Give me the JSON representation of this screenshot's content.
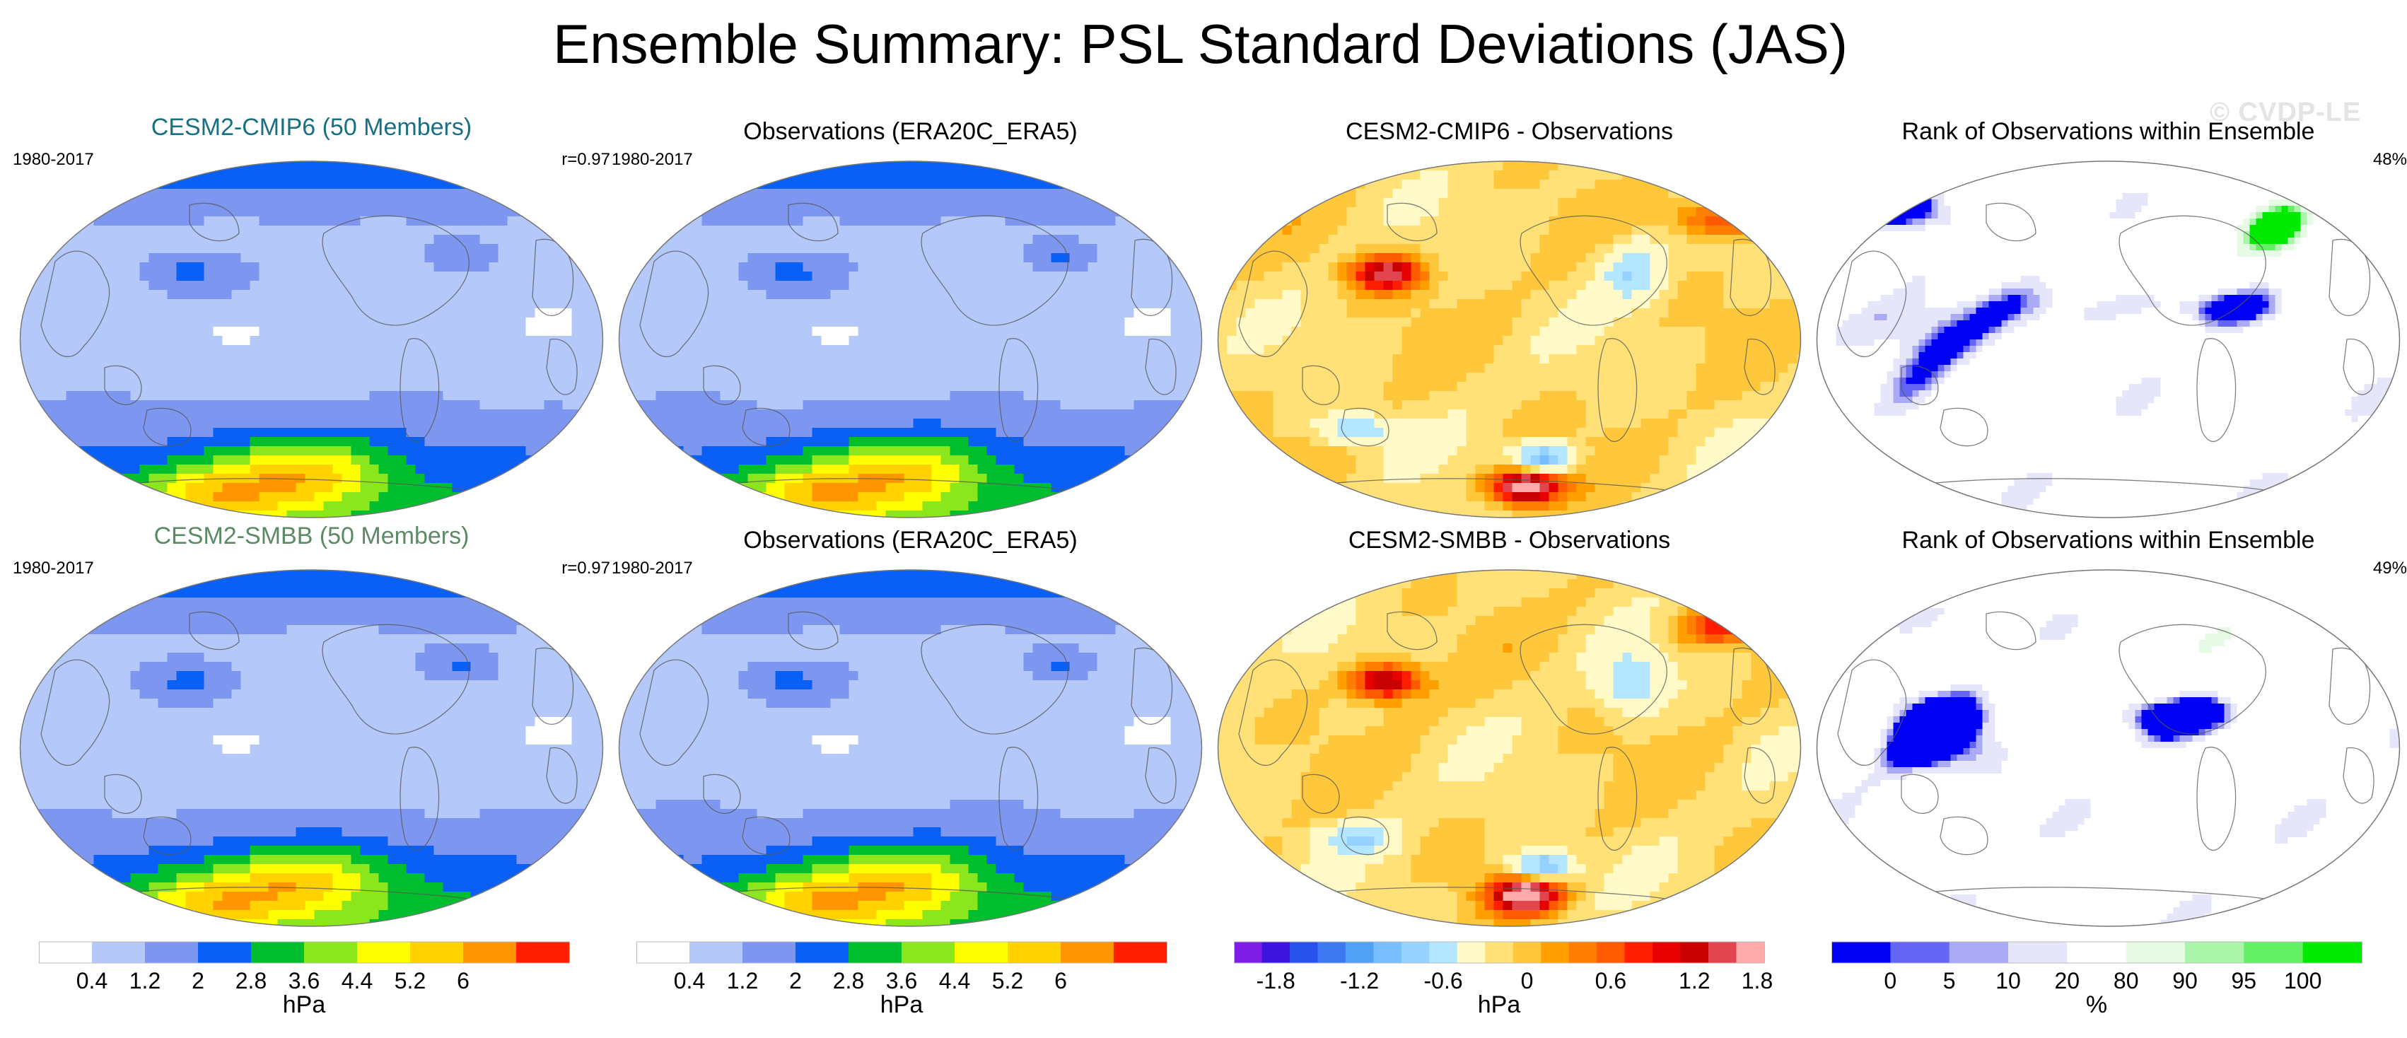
{
  "title": "Ensemble Summary: PSL Standard Deviations (JAS)",
  "watermark": "© CVDP-LE",
  "panels": [
    {
      "title": "CESM2-CMIP6 (50 Members)",
      "left": "1980-2017",
      "right": "r=0.97",
      "kind": "std",
      "field": "model1"
    },
    {
      "title": "Observations (ERA20C_ERA5)",
      "left": "1980-2017",
      "right": "",
      "kind": "std",
      "field": "obs"
    },
    {
      "title": "CESM2-CMIP6 - Observations",
      "left": "",
      "right": "",
      "kind": "diff",
      "field": "diff1"
    },
    {
      "title": "Rank of Observations within Ensemble",
      "left": "",
      "right": "48%",
      "kind": "rank",
      "field": "rank1"
    },
    {
      "title": "CESM2-SMBB (50 Members)",
      "left": "1980-2017",
      "right": "r=0.97",
      "kind": "std",
      "field": "model2"
    },
    {
      "title": "Observations (ERA20C_ERA5)",
      "left": "1980-2017",
      "right": "",
      "kind": "std",
      "field": "obs"
    },
    {
      "title": "CESM2-SMBB - Observations",
      "left": "",
      "right": "",
      "kind": "diff",
      "field": "diff2"
    },
    {
      "title": "Rank of Observations within Ensemble",
      "left": "",
      "right": "49%",
      "kind": "rank",
      "field": "rank2"
    }
  ],
  "colorbars": [
    {
      "kind": "std",
      "unit": "hPa",
      "colors": [
        "#ffffff",
        "#b4c8fa",
        "#7d96f0",
        "#0a5ff5",
        "#00be2d",
        "#8ce61e",
        "#ffff00",
        "#ffd200",
        "#ff9600",
        "#ff1e00"
      ],
      "ticks": [
        "0.4",
        "1.2",
        "2",
        "2.8",
        "3.6",
        "4.4",
        "5.2",
        "6"
      ]
    },
    {
      "kind": "std",
      "unit": "hPa",
      "colors": [
        "#ffffff",
        "#b4c8fa",
        "#7d96f0",
        "#0a5ff5",
        "#00be2d",
        "#8ce61e",
        "#ffff00",
        "#ffd200",
        "#ff9600",
        "#ff1e00"
      ],
      "ticks": [
        "0.4",
        "1.2",
        "2",
        "2.8",
        "3.6",
        "4.4",
        "5.2",
        "6"
      ]
    },
    {
      "kind": "diff",
      "unit": "hPa",
      "colors": [
        "#7d1ee6",
        "#3c14dc",
        "#2850eb",
        "#3c78f0",
        "#50a0f5",
        "#78beff",
        "#96d2ff",
        "#b4e6ff",
        "#fffac8",
        "#ffe178",
        "#ffc83c",
        "#ffa000",
        "#ff7d00",
        "#ff5a00",
        "#ff1e00",
        "#e60000",
        "#c80000",
        "#e14650",
        "#ffaaaa"
      ],
      "ticks": [
        "-1.8",
        "-1.2",
        "-0.6",
        "0",
        "0.6",
        "1.2",
        "1.8"
      ]
    },
    {
      "kind": "rank",
      "unit": "%",
      "colors": [
        "#0000f5",
        "#6464f5",
        "#aaaaf5",
        "#e6e6fa",
        "#ffffff",
        "#e6fae6",
        "#aaf5aa",
        "#64f064",
        "#00eb00"
      ],
      "ticks": [
        "0",
        "5",
        "10",
        "20",
        "80",
        "90",
        "95",
        "100"
      ]
    }
  ],
  "chart_data": {
    "type": "heatmap",
    "title": "Ensemble Summary: PSL Standard Deviations (JAS)",
    "period": "1980-2017",
    "season": "JAS",
    "variable": "PSL standard deviation",
    "projection": "Robinson (Pacific-centred)",
    "std_levels_hPa": [
      0.4,
      1.2,
      2,
      2.8,
      3.6,
      4.4,
      5.2,
      6
    ],
    "diff_levels_hPa": [
      -1.8,
      -1.2,
      -0.6,
      0,
      0.6,
      1.2,
      1.8
    ],
    "rank_levels_pct": [
      0,
      5,
      10,
      20,
      80,
      90,
      95,
      100
    ],
    "pattern_correlation": {
      "CESM2-CMIP6": 0.97,
      "CESM2-SMBB": 0.97
    },
    "rank_area_pct": {
      "CESM2-CMIP6": 48,
      "CESM2-SMBB": 49
    }
  }
}
